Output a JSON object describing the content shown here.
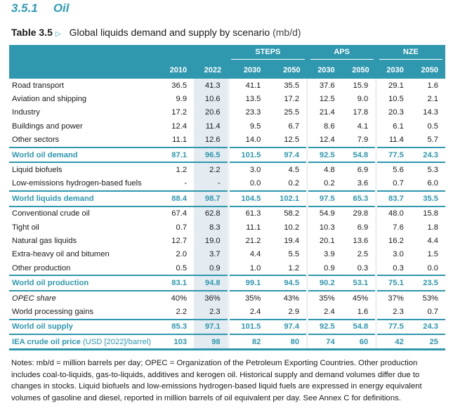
{
  "section": {
    "number": "3.5.1",
    "title": "Oil"
  },
  "table": {
    "label": "Table 3.5",
    "title": "Global liquids demand and supply by scenario",
    "unit": "(mb/d)",
    "groups": [
      "STEPS",
      "APS",
      "NZE"
    ],
    "years": [
      "2010",
      "2022",
      "2030",
      "2050",
      "2030",
      "2050",
      "2030",
      "2050"
    ],
    "rows": [
      {
        "label": "Road transport",
        "values": [
          "36.5",
          "41.3",
          "41.1",
          "35.5",
          "37.6",
          "15.9",
          "29.1",
          "1.6"
        ]
      },
      {
        "label": "Aviation and shipping",
        "values": [
          "9.9",
          "10.6",
          "13.5",
          "17.2",
          "12.5",
          "9.0",
          "10.5",
          "2.1"
        ]
      },
      {
        "label": "Industry",
        "values": [
          "17.2",
          "20.6",
          "23.3",
          "25.5",
          "21.4",
          "17.8",
          "20.3",
          "14.3"
        ]
      },
      {
        "label": "Buildings and power",
        "values": [
          "12.4",
          "11.4",
          "9.5",
          "6.7",
          "8.6",
          "4.1",
          "6.1",
          "0.5"
        ]
      },
      {
        "label": "Other sectors",
        "values": [
          "11.1",
          "12.6",
          "14.0",
          "12.5",
          "12.4",
          "7.9",
          "11.4",
          "5.7"
        ]
      },
      {
        "label": "World oil demand",
        "total": true,
        "values": [
          "87.1",
          "96.5",
          "101.5",
          "97.4",
          "92.5",
          "54.8",
          "77.5",
          "24.3"
        ]
      },
      {
        "label": "Liquid biofuels",
        "values": [
          "1.2",
          "2.2",
          "3.0",
          "4.5",
          "4.8",
          "6.9",
          "5.6",
          "5.3"
        ]
      },
      {
        "label": "Low-emissions hydrogen-based fuels",
        "values": [
          "-",
          "-",
          "0.0",
          "0.2",
          "0.2",
          "3.6",
          "0.7",
          "6.0"
        ]
      },
      {
        "label": "World liquids demand",
        "total": true,
        "values": [
          "88.4",
          "98.7",
          "104.5",
          "102.1",
          "97.5",
          "65.3",
          "83.7",
          "35.5"
        ]
      },
      {
        "label": "Conventional crude oil",
        "values": [
          "67.4",
          "62.8",
          "61.3",
          "58.2",
          "54.9",
          "29.8",
          "48.0",
          "15.8"
        ]
      },
      {
        "label": "Tight oil",
        "values": [
          "0.7",
          "8.3",
          "11.1",
          "10.2",
          "10.3",
          "6.9",
          "7.6",
          "1.8"
        ]
      },
      {
        "label": "Natural gas liquids",
        "values": [
          "12.7",
          "19.0",
          "21.2",
          "19.4",
          "20.1",
          "13.6",
          "16.2",
          "4.4"
        ]
      },
      {
        "label": "Extra-heavy oil and bitumen",
        "values": [
          "2.0",
          "3.7",
          "4.4",
          "5.5",
          "3.9",
          "2.5",
          "3.0",
          "1.5"
        ]
      },
      {
        "label": "Other production",
        "values": [
          "0.5",
          "0.9",
          "1.0",
          "1.2",
          "0.9",
          "0.3",
          "0.3",
          "0.0"
        ]
      },
      {
        "label": "World oil production",
        "total": true,
        "values": [
          "83.1",
          "94.8",
          "99.1",
          "94.5",
          "90.2",
          "53.1",
          "75.1",
          "23.5"
        ]
      },
      {
        "label": "OPEC share",
        "italic": true,
        "values": [
          "40%",
          "36%",
          "35%",
          "43%",
          "35%",
          "45%",
          "37%",
          "53%"
        ]
      },
      {
        "label": "World processing gains",
        "values": [
          "2.2",
          "2.3",
          "2.4",
          "2.9",
          "2.4",
          "1.6",
          "2.3",
          "0.7"
        ]
      },
      {
        "label": "World oil supply",
        "total": true,
        "values": [
          "85.3",
          "97.1",
          "101.5",
          "97.4",
          "92.5",
          "54.8",
          "77.5",
          "24.3"
        ]
      },
      {
        "label": "IEA crude oil price",
        "sublabel": "(USD [2022]/barrel)",
        "total": true,
        "last": true,
        "values": [
          "103",
          "98",
          "82",
          "80",
          "74",
          "60",
          "42",
          "25"
        ]
      }
    ]
  },
  "notes": "Notes: mb/d = million barrels per day; OPEC = Organization of the Petroleum Exporting Countries. Other production includes coal-to-liquids, gas-to-liquids, additives and kerogen oil. Historical supply and demand volumes differ due to changes in stocks. Liquid biofuels and low-emissions hydrogen-based liquid fuels are expressed in energy equivalent volumes of gasoline and diesel, reported in million barrels of oil equivalent per day. See Annex C for definitions.",
  "colors": {
    "accent": "#2f97ae",
    "highlight_column": "#e4ecf1"
  }
}
